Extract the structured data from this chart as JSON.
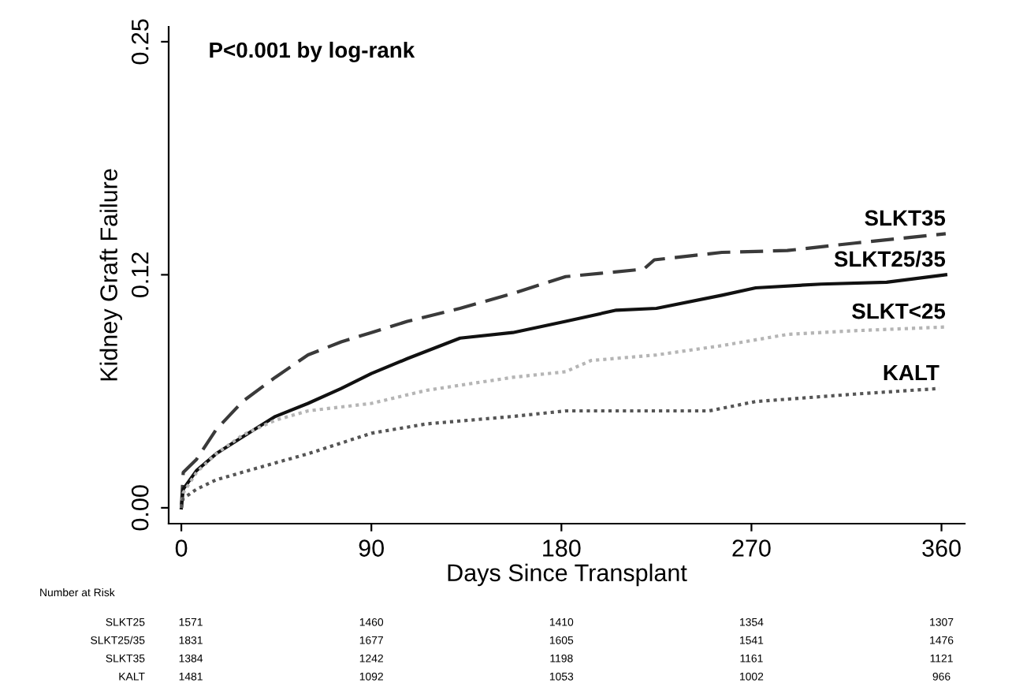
{
  "chart_data": {
    "type": "line",
    "xlabel": "Days Since Transplant",
    "ylabel": "Kidney Graft Failure",
    "xlim": [
      -6,
      371
    ],
    "xticks": [
      0,
      90,
      180,
      270,
      360
    ],
    "ylim": [
      -0.0085,
      0.258
    ],
    "yticks": [
      {
        "value": 0,
        "label": "0.00"
      },
      {
        "value": 0.125,
        "label": "0.12"
      },
      {
        "value": 0.25,
        "label": "0.25"
      }
    ],
    "grid": false,
    "series": [
      {
        "name": "SLKT35",
        "color": "#3a3a3a",
        "line_style": "dashed",
        "x": [
          0,
          0.9,
          7.2,
          16.5,
          29,
          44.5,
          60,
          75.7,
          90,
          107,
          132,
          157,
          182,
          219,
          224,
          256,
          287,
          319,
          362
        ],
        "values": [
          0,
          0.019,
          0.026,
          0.042,
          0.057,
          0.07,
          0.082,
          0.089,
          0.094,
          0.1,
          0.107,
          0.115,
          0.124,
          0.128,
          0.133,
          0.137,
          0.138,
          0.142,
          0.147
        ]
      },
      {
        "name": "SLKT25/35",
        "color": "#111111",
        "line_style": "solid",
        "x": [
          0,
          0.9,
          7.2,
          16.5,
          29,
          44.5,
          60,
          75.7,
          90,
          107,
          132,
          157,
          182,
          206,
          225,
          256,
          272,
          303,
          334,
          362
        ],
        "values": [
          0,
          0.01,
          0.02,
          0.029,
          0.038,
          0.049,
          0.056,
          0.064,
          0.072,
          0.08,
          0.091,
          0.094,
          0.1,
          0.106,
          0.107,
          0.114,
          0.118,
          0.12,
          0.121,
          0.125
        ]
      },
      {
        "name": "SLKT<25",
        "color": "#b5b5b5",
        "line_style": "dotted",
        "x": [
          0,
          0.9,
          7.2,
          16.5,
          29,
          44.5,
          60,
          90,
          116,
          157,
          182,
          194,
          225,
          256,
          287,
          319,
          362
        ],
        "values": [
          0,
          0.008,
          0.019,
          0.029,
          0.039,
          0.047,
          0.052,
          0.056,
          0.063,
          0.07,
          0.073,
          0.079,
          0.082,
          0.087,
          0.093,
          0.095,
          0.097
        ]
      },
      {
        "name": "KALT",
        "color": "#555555",
        "line_style": "dotted",
        "x": [
          0,
          0.9,
          7.2,
          16.5,
          38,
          60,
          90,
          116,
          157,
          182,
          225,
          250,
          272,
          319,
          359
        ],
        "values": [
          0,
          0.005,
          0.01,
          0.015,
          0.022,
          0.029,
          0.04,
          0.045,
          0.049,
          0.052,
          0.052,
          0.052,
          0.057,
          0.061,
          0.064
        ]
      }
    ],
    "annotations": [
      "P<0.001 by log-rank",
      "Number at Risk",
      "SLKT25",
      "1571",
      "1460",
      "1410",
      "1354",
      "1307",
      "SLKT25/35",
      "1831",
      "1677",
      "1605",
      "1541",
      "1476",
      "SLKT35",
      "1384",
      "1242",
      "1198",
      "1161",
      "1121",
      "KALT",
      "1481",
      "1092",
      "1053",
      "1002",
      "966"
    ]
  }
}
